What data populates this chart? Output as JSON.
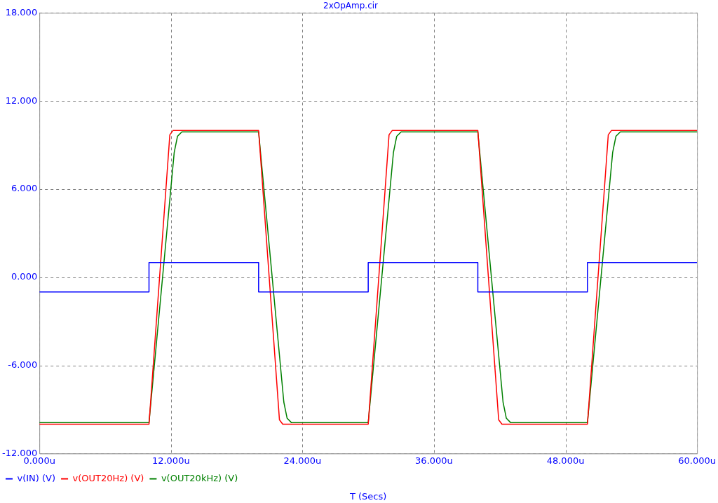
{
  "chart_data": {
    "type": "line",
    "title": "2xOpAmp.cir",
    "xlabel": "T (Secs)",
    "xlim": [
      0,
      60
    ],
    "xticks": [
      {
        "value": 0,
        "label": "0.000u"
      },
      {
        "value": 12,
        "label": "12.000u"
      },
      {
        "value": 24,
        "label": "24.000u"
      },
      {
        "value": 36,
        "label": "36.000u"
      },
      {
        "value": 48,
        "label": "48.000u"
      },
      {
        "value": 60,
        "label": "60.000u"
      }
    ],
    "ylim": [
      -12,
      18
    ],
    "yticks": [
      {
        "value": -12,
        "label": "-12.000"
      },
      {
        "value": -6,
        "label": "-6.000"
      },
      {
        "value": 0,
        "label": "0.000"
      },
      {
        "value": 6,
        "label": "6.000"
      },
      {
        "value": 12,
        "label": "12.000"
      },
      {
        "value": 18,
        "label": "18.000"
      }
    ],
    "grid": true,
    "legend": "bottom left",
    "marker": "none",
    "line_style": "solid",
    "series": [
      {
        "name": "v(IN) (V)",
        "color": "#0000ff",
        "x": [
          0,
          10,
          10,
          20,
          20,
          30,
          30,
          40,
          40,
          50,
          50,
          60
        ],
        "values": [
          -1,
          -1,
          1,
          1,
          -1,
          -1,
          1,
          1,
          -1,
          -1,
          1,
          1
        ]
      },
      {
        "name": "v(OUT20Hz) (V)",
        "color": "#ff0000",
        "x": [
          0,
          10,
          11.9,
          12.2,
          20,
          21.9,
          22.2,
          30,
          31.9,
          32.2,
          40,
          41.9,
          42.2,
          50,
          51.9,
          52.2,
          60
        ],
        "values": [
          -10,
          -10,
          9.7,
          10,
          10,
          -9.7,
          -10,
          -10,
          9.7,
          10,
          10,
          -9.7,
          -10,
          -10,
          9.7,
          10,
          10
        ]
      },
      {
        "name": "v(OUT20kHz) (V)",
        "color": "#008000",
        "x": [
          0,
          10,
          12.3,
          12.6,
          13,
          20,
          22.3,
          22.6,
          23,
          30,
          32.3,
          32.6,
          33,
          40,
          42.3,
          42.6,
          43,
          50,
          52.3,
          52.6,
          53,
          60
        ],
        "values": [
          -9.9,
          -9.9,
          8.5,
          9.6,
          9.9,
          9.9,
          -8.5,
          -9.6,
          -9.9,
          -9.9,
          8.5,
          9.6,
          9.9,
          9.9,
          -8.5,
          -9.6,
          -9.9,
          -9.9,
          8.5,
          9.6,
          9.9,
          9.9
        ]
      }
    ]
  }
}
